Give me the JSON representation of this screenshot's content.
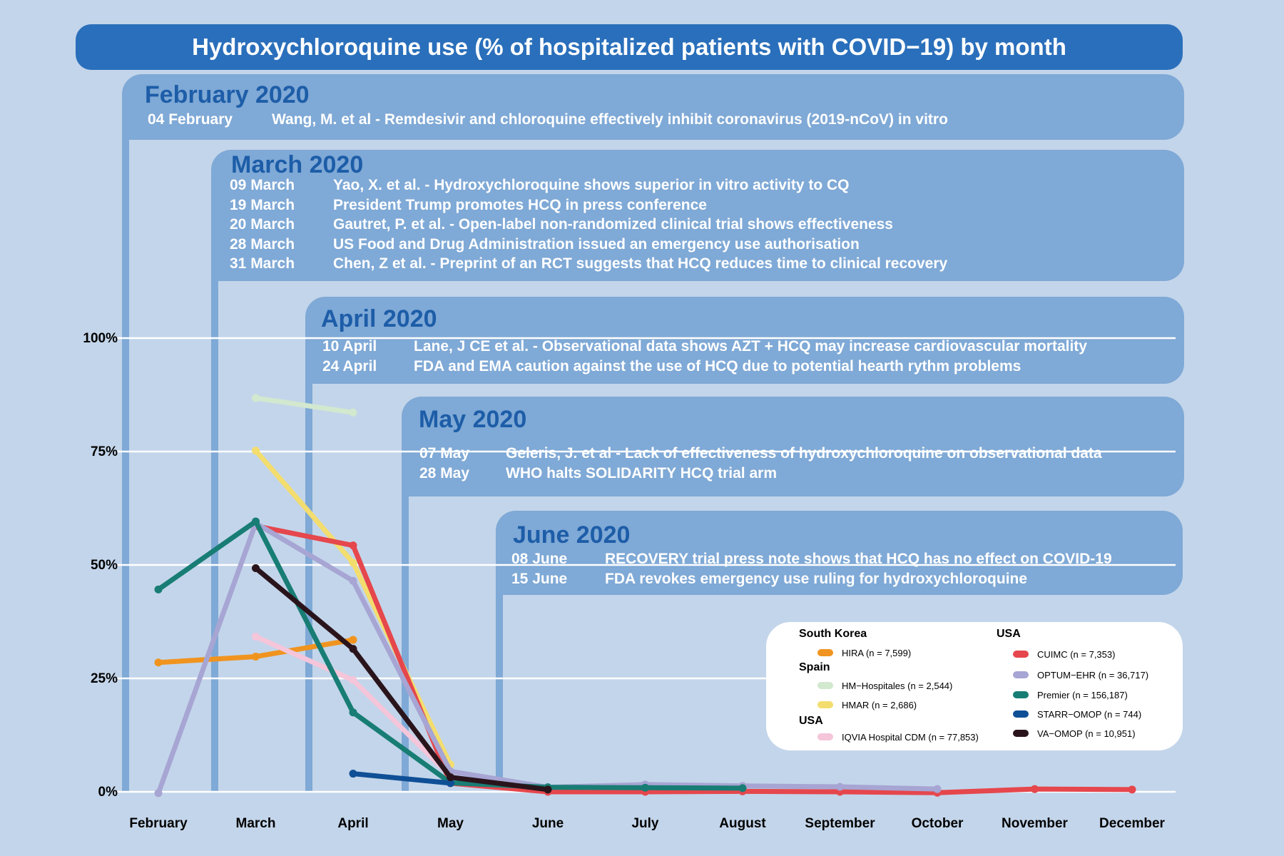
{
  "title": "Hydroxychloroquine use (% of hospitalized patients with COVID−19) by month",
  "timeline": [
    {
      "heading": "February 2020",
      "events": [
        {
          "date": "04 February",
          "text": "Wang, M. et al - Remdesivir and chloroquine effectively inhibit coronavirus (2019-nCoV) in vitro"
        }
      ]
    },
    {
      "heading": "March 2020",
      "events": [
        {
          "date": "09 March",
          "text": "Yao, X. et al. - Hydroxychloroquine shows superior in vitro activity to CQ"
        },
        {
          "date": "19 March",
          "text": "President Trump promotes HCQ in press conference"
        },
        {
          "date": "20 March",
          "text": "Gautret, P. et al. - Open-label non-randomized clinical trial shows effectiveness"
        },
        {
          "date": "28 March",
          "text": "US Food and Drug Administration issued an emergency use authorisation"
        },
        {
          "date": "31 March",
          "text": "Chen, Z et al. -  Preprint of an RCT suggests that HCQ reduces time to clinical recovery"
        }
      ]
    },
    {
      "heading": "April 2020",
      "events": [
        {
          "date": "10 April",
          "text": "Lane, J CE et al. - Observational data shows AZT + HCQ may increase cardiovascular mortality"
        },
        {
          "date": "24 April",
          "text": "FDA and EMA caution against the use of HCQ due to potential hearth rythm problems"
        }
      ]
    },
    {
      "heading": "May 2020",
      "events": [
        {
          "date": "07 May",
          "text": "Geleris, J.  et al - Lack of effectiveness of hydroxychloroquine on observational data"
        },
        {
          "date": "28 May",
          "text": "WHO halts SOLIDARITY HCQ trial arm"
        }
      ]
    },
    {
      "heading": "June 2020",
      "events": [
        {
          "date": "08 June",
          "text": "RECOVERY trial press note shows that HCQ has no effect on COVID-19"
        },
        {
          "date": "15 June",
          "text": "FDA revokes emergency use ruling for hydroxychloroquine"
        }
      ]
    }
  ],
  "legend": {
    "groups": [
      {
        "title": "South Korea",
        "items": [
          "HIRA (n = 7,599)"
        ]
      },
      {
        "title": "Spain",
        "items": [
          "HM−Hospitales (n = 2,544)",
          "HMAR (n = 2,686)"
        ]
      },
      {
        "title": "USA",
        "items": [
          "IQVIA Hospital CDM (n = 77,853)"
        ]
      },
      {
        "title": "USA",
        "items": [
          "CUIMC (n = 7,353)",
          "OPTUM−EHR (n = 36,717)",
          "Premier (n = 156,187)",
          "STARR−OMOP (n = 744)",
          "VA−OMOP (n = 10,951)"
        ]
      }
    ]
  },
  "chart_data": {
    "type": "line",
    "title": "Hydroxychloroquine use (% of hospitalized patients with COVID−19) by month",
    "xlabel": "",
    "ylabel": "",
    "categories": [
      "February",
      "March",
      "April",
      "May",
      "June",
      "July",
      "August",
      "September",
      "October",
      "November",
      "December"
    ],
    "y_ticks": [
      "0%",
      "25%",
      "50%",
      "75%",
      "100%"
    ],
    "ylim": [
      0,
      100
    ],
    "grid": true,
    "legend_position": "bottom-right",
    "series": [
      {
        "name": "HIRA (n = 7,599)",
        "color": "#f0941f",
        "values": [
          28.5,
          29.8,
          33.5,
          null,
          null,
          null,
          null,
          null,
          null,
          null,
          null
        ]
      },
      {
        "name": "HM−Hospitales (n = 2,544)",
        "color": "#d2e8cf",
        "values": [
          null,
          86.8,
          83.6,
          null,
          null,
          null,
          null,
          null,
          null,
          null,
          null
        ]
      },
      {
        "name": "HMAR (n = 2,686)",
        "color": "#f3dd6e",
        "values": [
          null,
          75.2,
          50.5,
          6.0,
          null,
          null,
          null,
          null,
          null,
          null,
          null
        ]
      },
      {
        "name": "IQVIA Hospital CDM (n = 77,853)",
        "color": "#f5c5da",
        "values": [
          null,
          34.2,
          24.6,
          3.5,
          null,
          null,
          null,
          null,
          null,
          null,
          null
        ]
      },
      {
        "name": "CUIMC (n = 7,353)",
        "color": "#e5474d",
        "values": [
          null,
          58.6,
          54.3,
          1.9,
          0.0,
          0.0,
          0.1,
          0.0,
          -0.2,
          0.6,
          0.5
        ]
      },
      {
        "name": "OPTUM−EHR (n = 36,717)",
        "color": "#a7a5d3",
        "values": [
          -0.3,
          59.2,
          46.5,
          4.5,
          1.0,
          1.6,
          1.3,
          1.1,
          0.6,
          null,
          null
        ]
      },
      {
        "name": "Premier (n = 156,187)",
        "color": "#187d74",
        "values": [
          44.6,
          59.6,
          17.5,
          2.0,
          1.0,
          0.9,
          0.8,
          null,
          null,
          null,
          null
        ]
      },
      {
        "name": "STARR−OMOP (n = 744)",
        "color": "#0f4f96",
        "values": [
          null,
          null,
          4.0,
          1.9,
          null,
          null,
          null,
          null,
          null,
          null,
          null
        ]
      },
      {
        "name": "VA−OMOP (n = 10,951)",
        "color": "#2a141b",
        "values": [
          null,
          49.3,
          31.5,
          3.2,
          0.5,
          null,
          null,
          null,
          null,
          null,
          null
        ]
      }
    ]
  }
}
